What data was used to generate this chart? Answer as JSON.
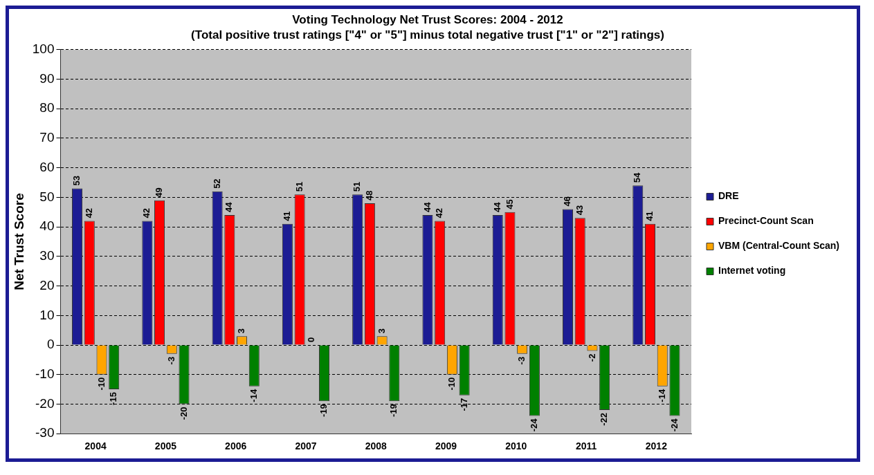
{
  "chart_data": {
    "type": "bar",
    "title": "Voting Technology Net Trust Scores: 2004 - 2012",
    "subtitle": "(Total positive trust ratings [\"4\" or \"5\"] minus total negative trust [\"1\" or \"2\"] ratings)",
    "ylabel": "Net Trust Score",
    "categories": [
      "2004",
      "2005",
      "2006",
      "2007",
      "2008",
      "2009",
      "2010",
      "2011",
      "2012"
    ],
    "series": [
      {
        "name": "DRE",
        "color": "#1c1c94",
        "values": [
          53,
          42,
          52,
          41,
          51,
          44,
          44,
          46,
          54
        ]
      },
      {
        "name": "Precinct-Count Scan",
        "color": "#ff0000",
        "values": [
          42,
          49,
          44,
          51,
          48,
          42,
          45,
          43,
          41
        ]
      },
      {
        "name": "VBM (Central-Count Scan)",
        "color": "#ffa500",
        "values": [
          -10,
          -3,
          3,
          0,
          3,
          -10,
          -3,
          -2,
          -14
        ]
      },
      {
        "name": "Internet voting",
        "color": "#008000",
        "values": [
          -15,
          -20,
          -14,
          -19,
          -19,
          -17,
          -24,
          -22,
          -24
        ]
      }
    ],
    "ylim": [
      -30,
      100
    ],
    "yticks": [
      -30,
      -20,
      -10,
      0,
      10,
      20,
      30,
      40,
      50,
      60,
      70,
      80,
      90,
      100
    ],
    "grid": "y",
    "legend": "right",
    "data_labels": true
  }
}
